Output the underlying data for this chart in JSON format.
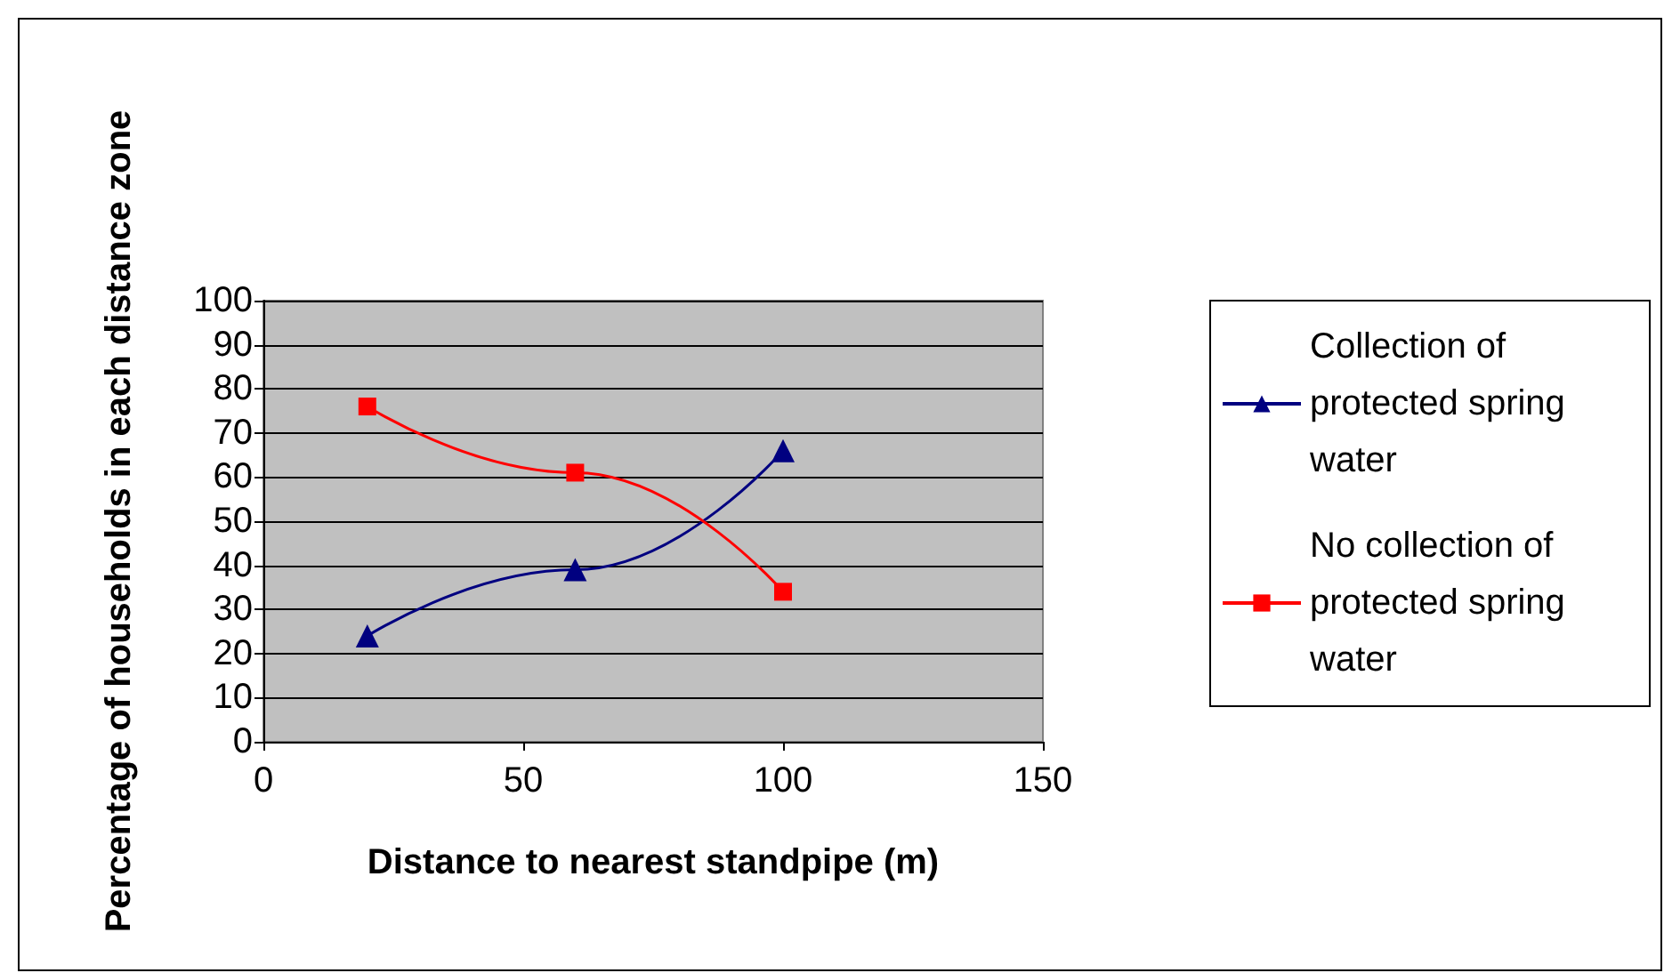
{
  "chart_data": {
    "type": "line",
    "xlabel": "Distance to nearest standpipe (m)",
    "ylabel": "Percentage of households in each distance zone",
    "x": [
      20,
      60,
      100
    ],
    "series": [
      {
        "name": "Collection of protected spring water",
        "color": "#000080",
        "marker": "triangle",
        "values": [
          24,
          39,
          66
        ]
      },
      {
        "name": "No collection of protected spring water",
        "color": "#ff0000",
        "marker": "square",
        "values": [
          76,
          61,
          34
        ]
      }
    ],
    "xlim": [
      0,
      150
    ],
    "xticks": [
      0,
      50,
      100,
      150
    ],
    "ylim": [
      0,
      100
    ],
    "yticks": [
      0,
      10,
      20,
      30,
      40,
      50,
      60,
      70,
      80,
      90,
      100
    ],
    "grid": "y",
    "legend": "right"
  }
}
